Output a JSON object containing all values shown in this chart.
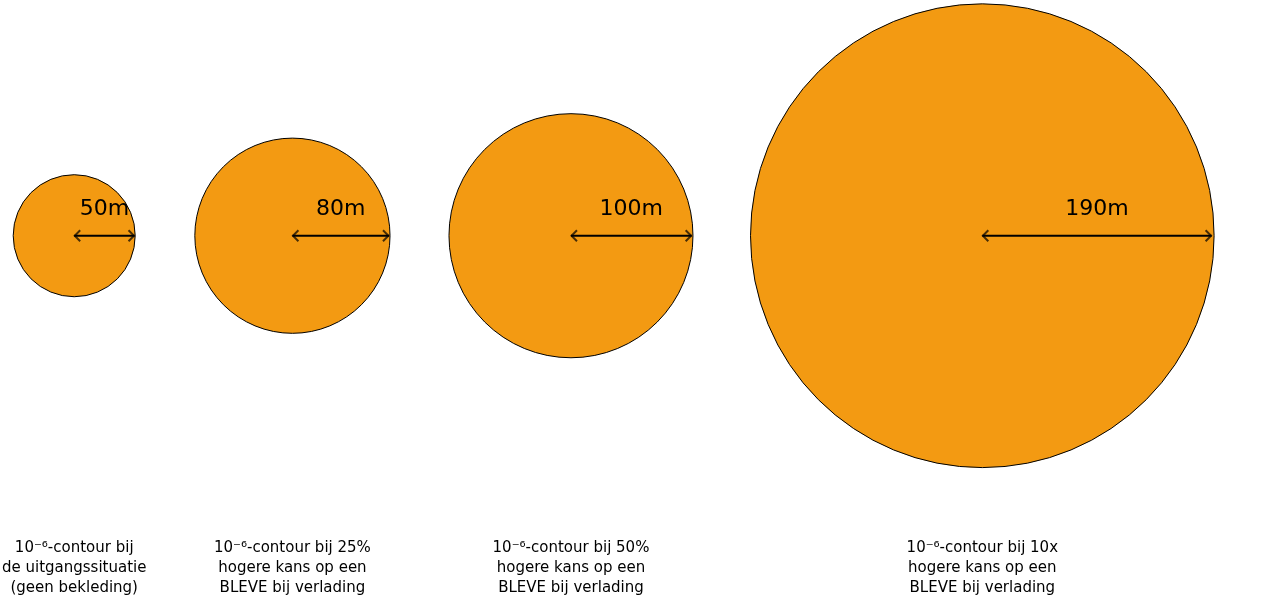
{
  "chart_data": {
    "type": "other",
    "categories": [
      "10⁻⁶-contour bij\nde uitgangssituatie\n(geen bekleding)",
      "10⁻⁶-contour bij 25%\nhogere kans op een\nBLEVE bij verlading",
      "10⁻⁶-contour bij 50%\nhogere kans op een\nBLEVE bij verlading",
      "10⁻⁶-contour bij 10x\nhogere kans op een\nBLEVE bij verlading"
    ],
    "values": [
      50,
      80,
      100,
      190
    ],
    "value_labels": [
      "50m",
      "80m",
      "100m",
      "190m"
    ],
    "color": "#f39a12"
  }
}
